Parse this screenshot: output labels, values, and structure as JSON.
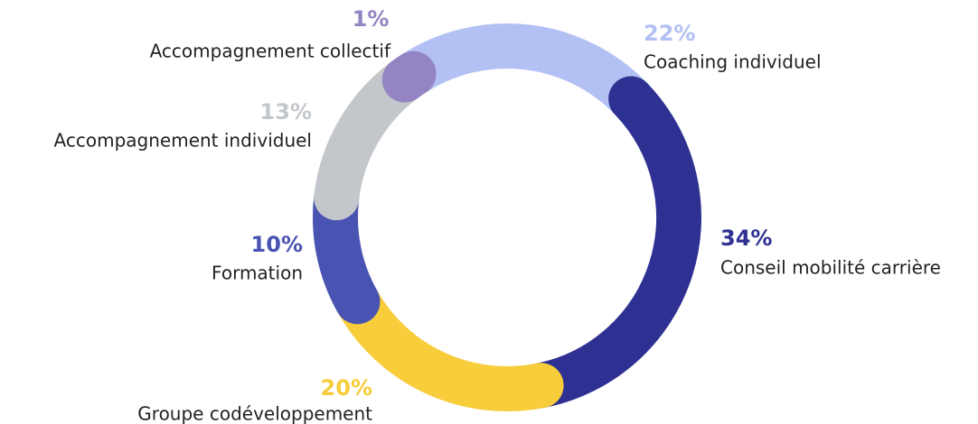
{
  "chart_data": {
    "type": "donut",
    "categories": [
      "Coaching individuel",
      "Conseil mobilité carrière",
      "Groupe codéveloppement",
      "Formation",
      "Accompagnement individuel",
      "Accompagnement collectif"
    ],
    "values": [
      22,
      34,
      20,
      10,
      13,
      1
    ],
    "value_labels": [
      "22%",
      "34%",
      "20%",
      "10%",
      "13%",
      "1%"
    ],
    "colors": [
      "#b3c0f3",
      "#2e3192",
      "#f7cd3b",
      "#4953b2",
      "#c3c7cb",
      "#9484c3"
    ]
  }
}
